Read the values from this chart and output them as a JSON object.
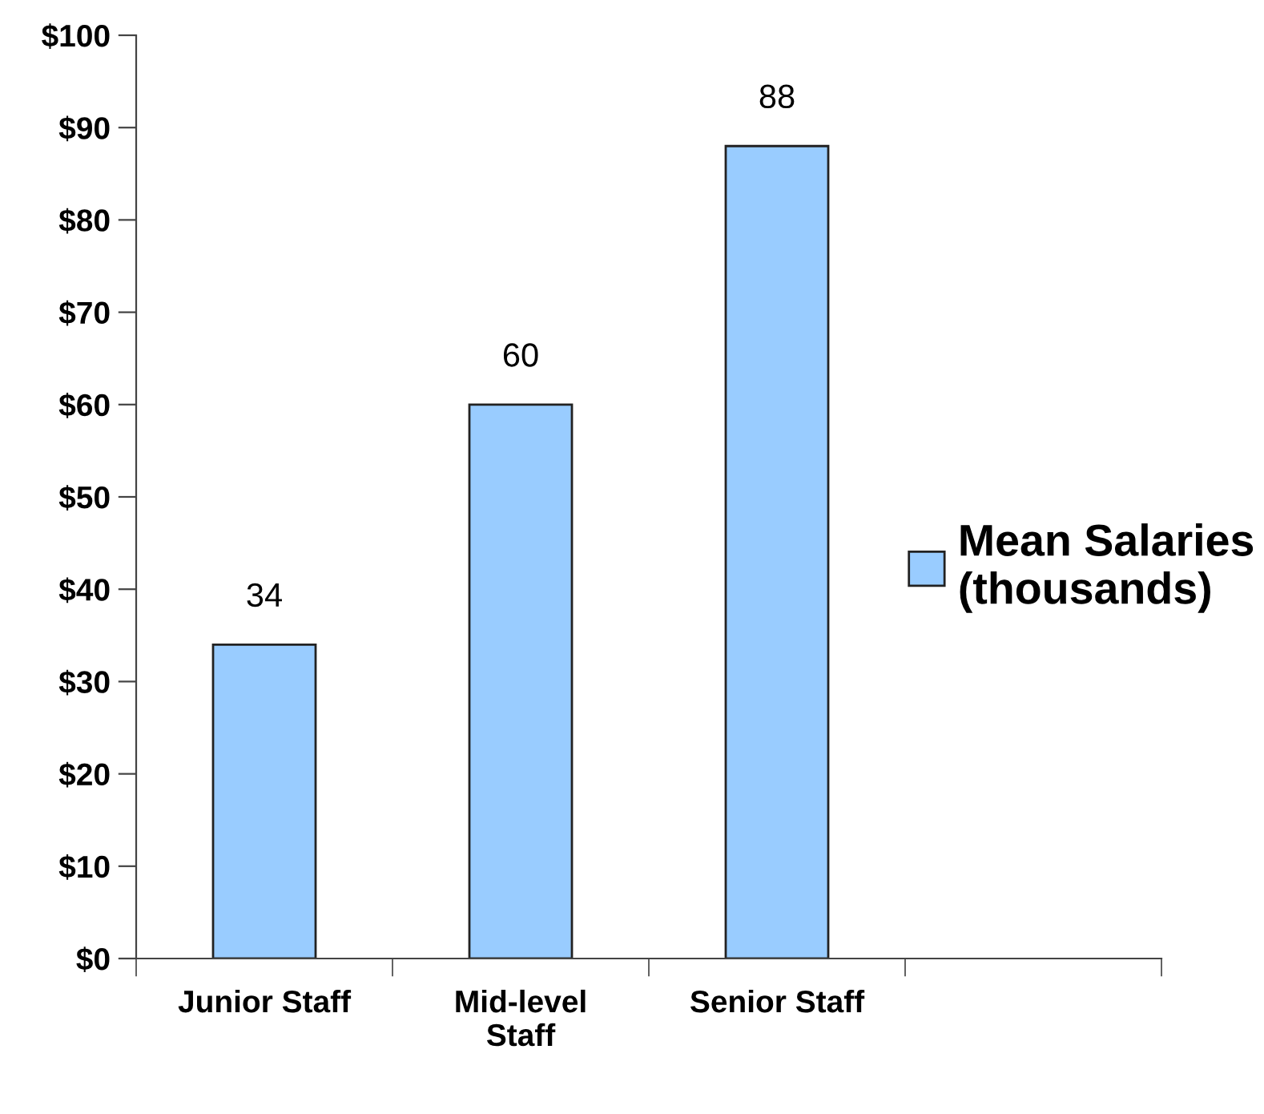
{
  "chart_data": {
    "type": "bar",
    "categories": [
      "Junior Staff",
      "Mid-level\nStaff",
      "Senior Staff",
      null
    ],
    "series": [
      {
        "name": "Mean Salaries\n(thousands)",
        "color": "#99ccff",
        "values": [
          34,
          60,
          88,
          null
        ]
      }
    ],
    "ylim": [
      0,
      100
    ],
    "yticks": [
      {
        "value": 0,
        "label": "$0"
      },
      {
        "value": 10,
        "label": "$10"
      },
      {
        "value": 20,
        "label": "$20"
      },
      {
        "value": 30,
        "label": "$30"
      },
      {
        "value": 40,
        "label": "$40"
      },
      {
        "value": 50,
        "label": "$50"
      },
      {
        "value": 60,
        "label": "$60"
      },
      {
        "value": 70,
        "label": "$70"
      },
      {
        "value": 80,
        "label": "$80"
      },
      {
        "value": 90,
        "label": "$90"
      },
      {
        "value": 100,
        "label": "$100"
      }
    ],
    "data_labels": true,
    "grid": false,
    "legend": "right"
  }
}
